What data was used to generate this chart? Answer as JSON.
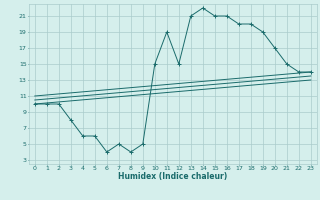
{
  "title": "",
  "xlabel": "Humidex (Indice chaleur)",
  "bg_color": "#d5efec",
  "grid_color": "#aacccc",
  "line_color": "#1a6b6b",
  "xlim": [
    -0.5,
    23.5
  ],
  "ylim": [
    2.5,
    22.5
  ],
  "xticks": [
    0,
    1,
    2,
    3,
    4,
    5,
    6,
    7,
    8,
    9,
    10,
    11,
    12,
    13,
    14,
    15,
    16,
    17,
    18,
    19,
    20,
    21,
    22,
    23
  ],
  "yticks": [
    3,
    5,
    7,
    9,
    11,
    13,
    15,
    17,
    19,
    21
  ],
  "main_x": [
    0,
    1,
    2,
    3,
    4,
    5,
    6,
    7,
    8,
    9,
    10,
    11,
    12,
    13,
    14,
    15,
    16,
    17,
    18,
    19,
    20,
    21,
    22,
    23
  ],
  "main_y": [
    10,
    10,
    10,
    8,
    6,
    6,
    4,
    5,
    4,
    5,
    15,
    19,
    15,
    21,
    22,
    21,
    21,
    20,
    20,
    19,
    17,
    15,
    14,
    14
  ],
  "line1_x": [
    0,
    23
  ],
  "line1_y": [
    11.0,
    14.0
  ],
  "line2_x": [
    0,
    23
  ],
  "line2_y": [
    10.5,
    13.5
  ],
  "line3_x": [
    0,
    23
  ],
  "line3_y": [
    10.0,
    13.0
  ]
}
